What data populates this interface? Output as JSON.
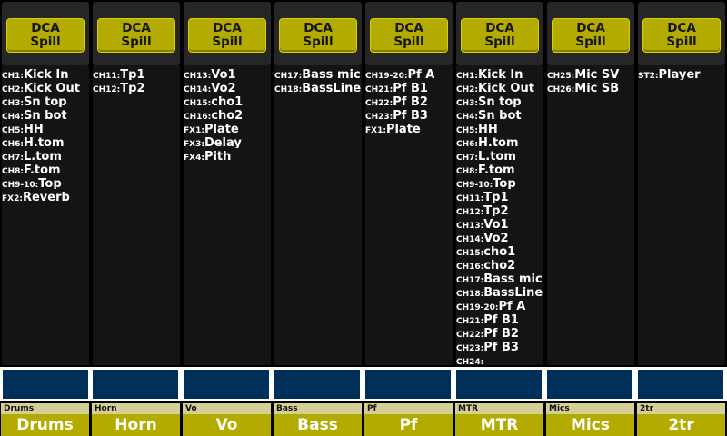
{
  "colors": {
    "background": "#000000",
    "strip_panel": "#262626",
    "list_bg": "#141414",
    "dca_button": "#b3ab00",
    "meter": "#00305a",
    "label_small": "#d4cf97",
    "label_big": "#b3ab00"
  },
  "strips": [
    {
      "button_line1": "DCA",
      "button_line2": "Spill",
      "label_small": "Drums",
      "label_big": "Drums",
      "rows": [
        {
          "ch": "CH1:",
          "name": "Kick In"
        },
        {
          "ch": "CH2:",
          "name": "Kick Out"
        },
        {
          "ch": "CH3:",
          "name": "Sn top"
        },
        {
          "ch": "CH4:",
          "name": "Sn bot"
        },
        {
          "ch": "CH5:",
          "name": "HH"
        },
        {
          "ch": "CH6:",
          "name": "H.tom"
        },
        {
          "ch": "CH7:",
          "name": "L.tom"
        },
        {
          "ch": "CH8:",
          "name": "F.tom"
        },
        {
          "ch": "CH9-10:",
          "name": "Top"
        },
        {
          "ch": "FX2:",
          "name": "Reverb"
        }
      ]
    },
    {
      "button_line1": "DCA",
      "button_line2": "Spill",
      "label_small": "Horn",
      "label_big": "Horn",
      "rows": [
        {
          "ch": "CH11:",
          "name": "Tp1"
        },
        {
          "ch": "CH12:",
          "name": "Tp2"
        }
      ]
    },
    {
      "button_line1": "DCA",
      "button_line2": "Spill",
      "label_small": "Vo",
      "label_big": "Vo",
      "rows": [
        {
          "ch": "CH13:",
          "name": "Vo1"
        },
        {
          "ch": "CH14:",
          "name": "Vo2"
        },
        {
          "ch": "CH15:",
          "name": "cho1"
        },
        {
          "ch": "CH16:",
          "name": "cho2"
        },
        {
          "ch": "FX1:",
          "name": "Plate"
        },
        {
          "ch": "FX3:",
          "name": "Delay"
        },
        {
          "ch": "FX4:",
          "name": "Pith"
        }
      ]
    },
    {
      "button_line1": "DCA",
      "button_line2": "Spill",
      "label_small": "Bass",
      "label_big": "Bass",
      "rows": [
        {
          "ch": "CH17:",
          "name": "Bass mic"
        },
        {
          "ch": "CH18:",
          "name": "BassLine"
        }
      ]
    },
    {
      "button_line1": "DCA",
      "button_line2": "Spill",
      "label_small": "Pf",
      "label_big": "Pf",
      "rows": [
        {
          "ch": "CH19-20:",
          "name": "Pf A"
        },
        {
          "ch": "CH21:",
          "name": "Pf B1"
        },
        {
          "ch": "CH22:",
          "name": "Pf B2"
        },
        {
          "ch": "CH23:",
          "name": "Pf B3"
        },
        {
          "ch": "FX1:",
          "name": "Plate"
        }
      ]
    },
    {
      "button_line1": "DCA",
      "button_line2": "Spill",
      "label_small": "MTR",
      "label_big": "MTR",
      "rows": [
        {
          "ch": "CH1:",
          "name": "Kick In"
        },
        {
          "ch": "CH2:",
          "name": "Kick Out"
        },
        {
          "ch": "CH3:",
          "name": "Sn top"
        },
        {
          "ch": "CH4:",
          "name": "Sn bot"
        },
        {
          "ch": "CH5:",
          "name": "HH"
        },
        {
          "ch": "CH6:",
          "name": "H.tom"
        },
        {
          "ch": "CH7:",
          "name": "L.tom"
        },
        {
          "ch": "CH8:",
          "name": "F.tom"
        },
        {
          "ch": "CH9-10:",
          "name": "Top"
        },
        {
          "ch": "CH11:",
          "name": "Tp1"
        },
        {
          "ch": "CH12:",
          "name": "Tp2"
        },
        {
          "ch": "CH13:",
          "name": "Vo1"
        },
        {
          "ch": "CH14:",
          "name": "Vo2"
        },
        {
          "ch": "CH15:",
          "name": "cho1"
        },
        {
          "ch": "CH16:",
          "name": "cho2"
        },
        {
          "ch": "CH17:",
          "name": "Bass mic"
        },
        {
          "ch": "CH18:",
          "name": "BassLine"
        },
        {
          "ch": "CH19-20:",
          "name": "Pf A"
        },
        {
          "ch": "CH21:",
          "name": "Pf B1"
        },
        {
          "ch": "CH22:",
          "name": "Pf B2"
        },
        {
          "ch": "CH23:",
          "name": "Pf B3"
        },
        {
          "ch": "CH24:",
          "name": ""
        }
      ]
    },
    {
      "button_line1": "DCA",
      "button_line2": "Spill",
      "label_small": "Mics",
      "label_big": "Mics",
      "rows": [
        {
          "ch": "CH25:",
          "name": "Mic SV"
        },
        {
          "ch": "CH26:",
          "name": "Mic SB"
        }
      ]
    },
    {
      "button_line1": "DCA",
      "button_line2": "Spill",
      "label_small": "2tr",
      "label_big": "2tr",
      "rows": [
        {
          "ch": "ST2:",
          "name": "Player"
        }
      ]
    }
  ]
}
